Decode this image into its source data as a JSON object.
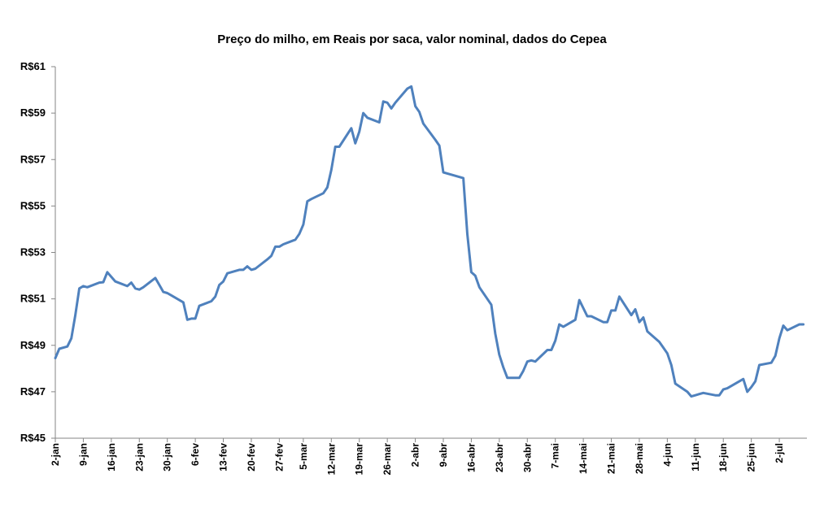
{
  "chart_data": {
    "type": "line",
    "title": "Preço do milho,  em Reais por saca, valor nominal, dados do Cepea",
    "xlabel": "",
    "ylabel": "",
    "ylim": [
      45,
      61
    ],
    "yticks": [
      45,
      47,
      49,
      51,
      53,
      55,
      57,
      59,
      61
    ],
    "ytick_labels": [
      "R$45",
      "R$47",
      "R$49",
      "R$51",
      "R$53",
      "R$55",
      "R$57",
      "R$59",
      "R$61"
    ],
    "xlim": [
      "2-jan",
      "7-jul"
    ],
    "x_tick_labels": [
      "2-jan",
      "9-jan",
      "16-jan",
      "23-jan",
      "30-jan",
      "6-fev",
      "13-fev",
      "20-fev",
      "27-fev",
      "5-mar",
      "12-mar",
      "19-mar",
      "26-mar",
      "2-abr",
      "9-abr",
      "16-abr",
      "23-abr",
      "30-abr",
      "7-mai",
      "14-mai",
      "21-mai",
      "28-mai",
      "4-jun",
      "11-jun",
      "18-jun",
      "25-jun",
      "2-jul"
    ],
    "grid": false,
    "line_color": "#4F81BD",
    "series": [
      {
        "x": [
          "2-jan",
          "3-jan",
          "5-jan",
          "6-jan",
          "7-jan",
          "8-jan",
          "9-jan",
          "10-jan",
          "13-jan",
          "14-jan",
          "15-jan",
          "16-jan",
          "17-jan",
          "20-jan",
          "21-jan",
          "22-jan",
          "23-jan",
          "24-jan",
          "27-jan",
          "28-jan",
          "29-jan",
          "30-jan",
          "31-jan",
          "3-fev",
          "4-fev",
          "5-fev",
          "6-fev",
          "7-fev",
          "10-fev",
          "11-fev",
          "12-fev",
          "13-fev",
          "14-fev",
          "17-fev",
          "18-fev",
          "19-fev",
          "20-fev",
          "21-fev",
          "24-fev",
          "25-fev",
          "26-fev",
          "27-fev",
          "28-fev",
          "3-mar",
          "4-mar",
          "5-mar",
          "6-mar",
          "7-mar",
          "10-mar",
          "11-mar",
          "12-mar",
          "13-mar",
          "14-mar",
          "17-mar",
          "18-mar",
          "19-mar",
          "20-mar",
          "21-mar",
          "24-mar",
          "25-mar",
          "26-mar",
          "27-mar",
          "28-mar",
          "31-mar",
          "1-abr",
          "2-abr",
          "3-abr",
          "4-abr",
          "7-abr",
          "8-abr",
          "9-abr",
          "10-abr",
          "11-abr",
          "14-abr",
          "15-abr",
          "16-abr",
          "17-abr",
          "18-abr",
          "21-abr",
          "22-abr",
          "23-abr",
          "24-abr",
          "25-abr",
          "28-abr",
          "29-abr",
          "30-abr",
          "1-mai",
          "2-mai",
          "5-mai",
          "6-mai",
          "7-mai",
          "8-mai",
          "9-mai",
          "12-mai",
          "13-mai",
          "14-mai",
          "15-mai",
          "16-mai",
          "19-mai",
          "20-mai",
          "21-mai",
          "22-mai",
          "23-mai",
          "26-mai",
          "27-mai",
          "28-mai",
          "29-mai",
          "30-mai",
          "2-jun",
          "3-jun",
          "4-jun",
          "5-jun",
          "6-jun",
          "9-jun",
          "10-jun",
          "11-jun",
          "12-jun",
          "13-jun",
          "16-jun",
          "17-jun",
          "18-jun",
          "19-jun",
          "20-jun",
          "23-jun",
          "24-jun",
          "25-jun",
          "26-jun",
          "27-jun",
          "30-jun",
          "1-jul",
          "2-jul",
          "3-jul",
          "4-jul",
          "7-jul",
          "8-jul"
        ],
        "values": [
          48.45,
          48.85,
          48.95,
          49.3,
          50.3,
          51.45,
          51.55,
          51.5,
          51.7,
          51.72,
          52.15,
          51.95,
          51.75,
          51.55,
          51.7,
          51.45,
          51.4,
          51.5,
          51.9,
          51.6,
          51.3,
          51.25,
          51.15,
          50.85,
          50.1,
          50.15,
          50.15,
          50.7,
          50.9,
          51.1,
          51.6,
          51.75,
          52.1,
          52.25,
          52.25,
          52.4,
          52.25,
          52.3,
          52.7,
          52.85,
          53.25,
          53.25,
          53.35,
          53.55,
          53.8,
          54.2,
          55.2,
          55.3,
          55.55,
          55.8,
          56.55,
          57.55,
          57.55,
          58.35,
          57.7,
          58.2,
          59.0,
          58.8,
          58.6,
          59.5,
          59.45,
          59.2,
          59.45,
          60.05,
          60.15,
          59.3,
          59.05,
          58.55,
          57.85,
          57.6,
          56.45,
          56.4,
          56.35,
          56.2,
          53.8,
          52.15,
          52.0,
          51.5,
          50.75,
          49.5,
          48.6,
          48.05,
          47.6,
          47.6,
          47.9,
          48.3,
          48.35,
          48.3,
          48.8,
          48.8,
          49.2,
          49.9,
          49.8,
          50.1,
          50.95,
          50.6,
          50.25,
          50.25,
          50.0,
          50.0,
          50.5,
          50.5,
          51.1,
          50.3,
          50.55,
          50.0,
          50.2,
          49.6,
          49.15,
          48.9,
          48.65,
          48.15,
          47.35,
          47.0,
          46.8,
          46.85,
          46.9,
          46.95,
          46.85,
          46.85,
          47.1,
          47.15,
          47.25,
          47.55,
          47.0,
          47.2,
          47.45,
          48.15,
          48.25,
          48.55,
          49.3,
          49.85,
          49.65,
          49.9,
          49.9
        ]
      }
    ]
  }
}
